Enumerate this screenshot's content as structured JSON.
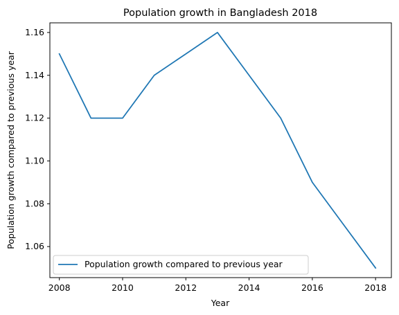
{
  "chart_data": {
    "type": "line",
    "title": "Population growth in Bangladesh 2018",
    "xlabel": "Year",
    "ylabel": "Population growth compared to previous year",
    "xlim": [
      2007.7,
      2018.5
    ],
    "ylim": [
      1.0455,
      1.1645
    ],
    "xticks": [
      2008,
      2010,
      2012,
      2014,
      2016,
      2018
    ],
    "xtick_labels": [
      "2008",
      "2010",
      "2012",
      "2014",
      "2016",
      "2018"
    ],
    "yticks": [
      1.06,
      1.08,
      1.1,
      1.12,
      1.14,
      1.16
    ],
    "ytick_labels": [
      "1.06",
      "1.08",
      "1.10",
      "1.12",
      "1.14",
      "1.16"
    ],
    "grid": false,
    "legend_position": "lower-left",
    "series": [
      {
        "name": "Population growth compared to previous year",
        "color": "#1f77b4",
        "x": [
          2008,
          2009,
          2010,
          2011,
          2012,
          2013,
          2014,
          2015,
          2016,
          2017,
          2018
        ],
        "y": [
          1.15,
          1.12,
          1.12,
          1.14,
          1.15,
          1.16,
          1.14,
          1.12,
          1.09,
          1.07,
          1.05
        ]
      }
    ]
  }
}
